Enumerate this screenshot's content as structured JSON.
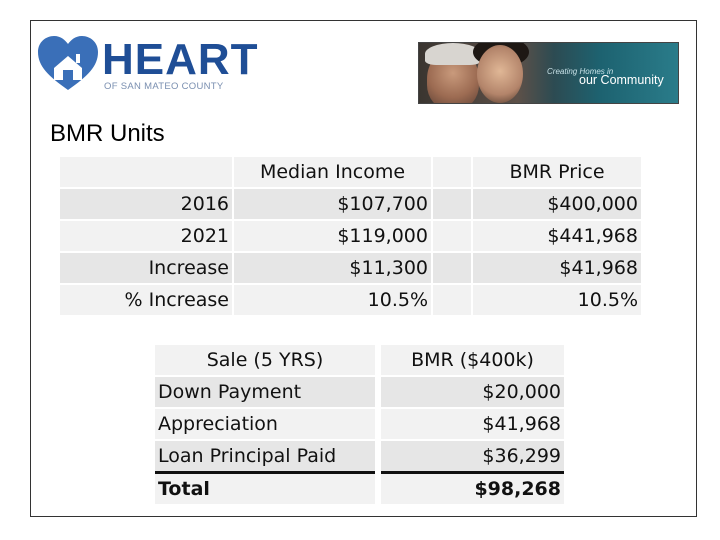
{
  "logo": {
    "word": "HEART",
    "subtitle": "OF SAN MATEO COUNTY",
    "brand_color": "#1f4e96"
  },
  "banner": {
    "small_text": "Creating Homes in",
    "big_text": "our Community"
  },
  "section_title": "BMR Units",
  "table1": {
    "headers": [
      "",
      "Median Income",
      "BMR Price"
    ],
    "rows": [
      {
        "label": "2016",
        "income": "$107,700",
        "price": "$400,000"
      },
      {
        "label": "2021",
        "income": "$119,000",
        "price": "$441,968"
      },
      {
        "label": "Increase",
        "income": "$11,300",
        "price": "$41,968"
      },
      {
        "label": "% Increase",
        "income": "10.5%",
        "price": "10.5%"
      }
    ]
  },
  "table2": {
    "headers": [
      "Sale (5 YRS)",
      "BMR ($400k)"
    ],
    "rows": [
      {
        "label": "Down Payment",
        "value": "$20,000"
      },
      {
        "label": "Appreciation",
        "value": "$41,968"
      },
      {
        "label": "Loan Principal Paid",
        "value": "$36,299"
      }
    ],
    "total": {
      "label": "Total",
      "value": "$98,268"
    }
  }
}
